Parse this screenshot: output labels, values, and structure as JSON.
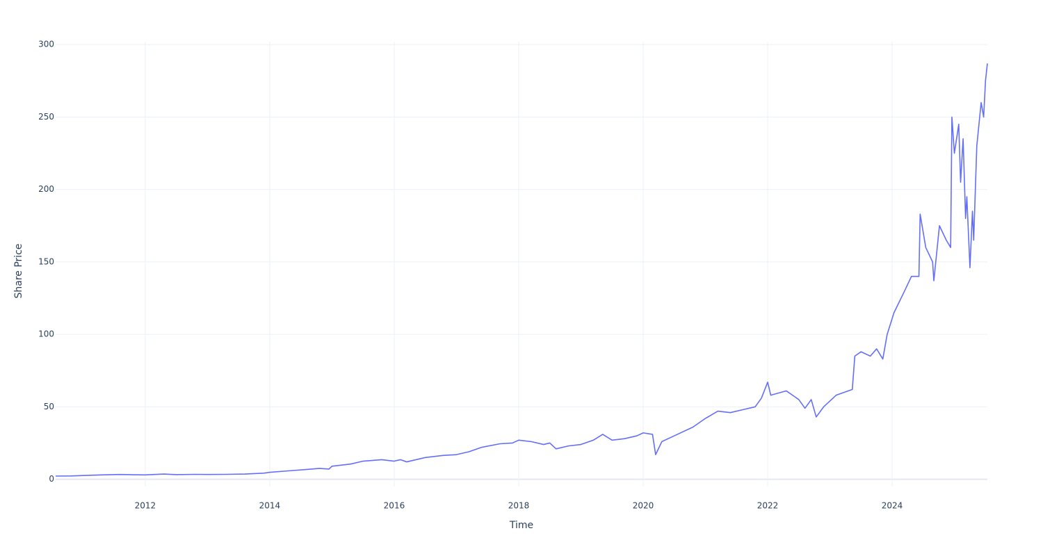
{
  "chart_data": {
    "type": "line",
    "x_label": "Time",
    "y_label": "Share Price",
    "xlim": [
      2010.56,
      2025.53
    ],
    "ylim": [
      -5,
      302
    ],
    "xticks": [
      2012,
      2014,
      2016,
      2018,
      2020,
      2022,
      2024
    ],
    "yticks": [
      0,
      50,
      100,
      150,
      200,
      250,
      300
    ],
    "grid": true,
    "series": [
      {
        "color": "#636efa",
        "x": [
          2010.56,
          2010.8,
          2011.0,
          2011.3,
          2011.6,
          2011.8,
          2012.0,
          2012.3,
          2012.5,
          2012.8,
          2013.0,
          2013.3,
          2013.6,
          2013.9,
          2014.0,
          2014.3,
          2014.6,
          2014.8,
          2014.95,
          2015.0,
          2015.3,
          2015.5,
          2015.8,
          2016.0,
          2016.1,
          2016.2,
          2016.5,
          2016.8,
          2017.0,
          2017.2,
          2017.4,
          2017.7,
          2017.9,
          2018.0,
          2018.2,
          2018.4,
          2018.5,
          2018.6,
          2018.8,
          2019.0,
          2019.2,
          2019.35,
          2019.5,
          2019.7,
          2019.9,
          2020.0,
          2020.15,
          2020.2,
          2020.3,
          2020.5,
          2020.8,
          2021.0,
          2021.2,
          2021.4,
          2021.6,
          2021.8,
          2021.9,
          2022.0,
          2022.05,
          2022.3,
          2022.5,
          2022.6,
          2022.7,
          2022.78,
          2022.9,
          2023.1,
          2023.36,
          2023.4,
          2023.5,
          2023.65,
          2023.75,
          2023.85,
          2023.92,
          2024.03,
          2024.2,
          2024.31,
          2024.43,
          2024.45,
          2024.54,
          2024.65,
          2024.67,
          2024.76,
          2024.87,
          2024.94,
          2024.96,
          2025.0,
          2025.07,
          2025.1,
          2025.14,
          2025.18,
          2025.2,
          2025.25,
          2025.29,
          2025.31,
          2025.36,
          2025.43,
          2025.47,
          2025.5,
          2025.53
        ],
        "values": [
          2.2,
          2.3,
          2.6,
          3.0,
          3.3,
          3.1,
          3.0,
          3.6,
          3.2,
          3.4,
          3.3,
          3.4,
          3.6,
          4.2,
          4.8,
          5.8,
          6.8,
          7.5,
          7.0,
          9.0,
          10.5,
          12.5,
          13.5,
          12.5,
          13.5,
          12,
          15,
          16.5,
          17,
          19,
          22,
          24.5,
          25,
          27,
          26,
          24,
          25,
          21,
          23,
          24,
          27,
          31,
          27,
          28,
          30,
          32,
          31,
          17,
          26,
          30,
          36,
          42,
          47,
          46,
          48,
          50,
          56,
          67,
          58,
          61,
          55,
          49,
          55,
          43,
          50,
          58,
          62,
          85,
          88,
          85,
          90,
          83,
          100,
          115,
          130,
          140,
          140,
          183,
          160,
          150,
          137,
          175,
          165,
          160,
          250,
          225,
          245,
          205,
          235,
          180,
          195,
          146,
          185,
          165,
          230,
          260,
          250,
          275,
          287
        ]
      }
    ]
  }
}
